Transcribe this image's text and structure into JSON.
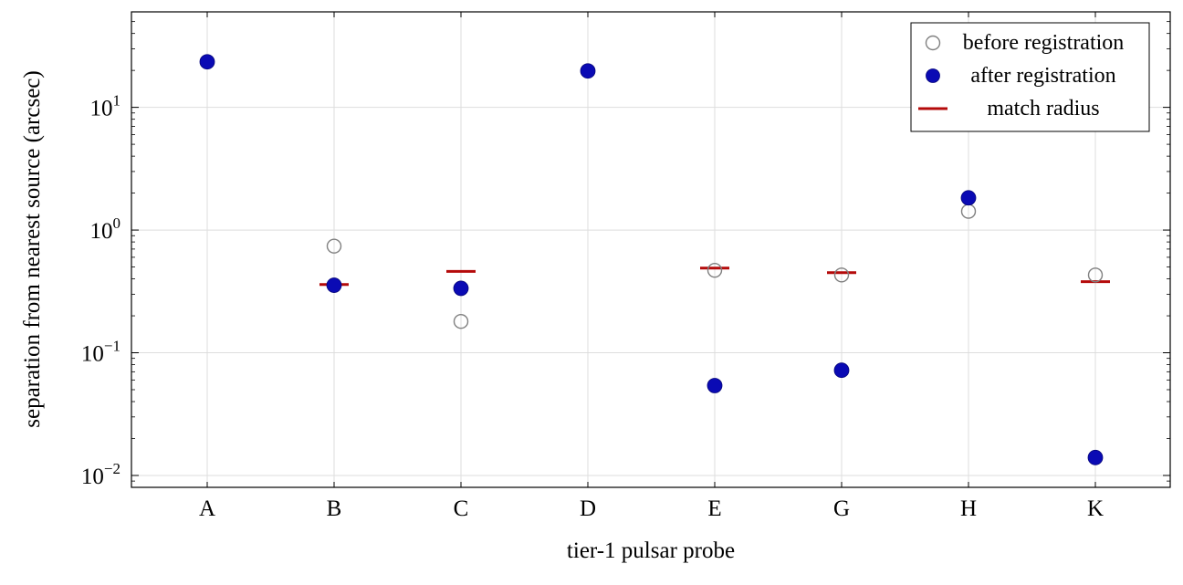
{
  "chart_data": {
    "type": "scatter",
    "xlabel": "tier-1 pulsar probe",
    "ylabel": "separation from nearest source (arcsec)",
    "categories": [
      "A",
      "B",
      "C",
      "D",
      "E",
      "G",
      "H",
      "K"
    ],
    "y_scale": "log",
    "ylim": [
      0.008,
      60
    ],
    "y_ticks": [
      {
        "base": "10",
        "exp": "−2",
        "value": 0.01
      },
      {
        "base": "10",
        "exp": "−1",
        "value": 0.1
      },
      {
        "base": "10",
        "exp": "0",
        "value": 1
      },
      {
        "base": "10",
        "exp": "1",
        "value": 10
      }
    ],
    "grid": true,
    "legend_position": "top-right",
    "series": [
      {
        "name": "before registration",
        "marker": "open-circle",
        "color": "#808080",
        "values": [
          null,
          0.74,
          0.18,
          null,
          0.47,
          0.43,
          1.42,
          0.43
        ]
      },
      {
        "name": "after registration",
        "marker": "filled-circle",
        "color": "#0a0ab4",
        "values": [
          23.5,
          0.355,
          0.335,
          19.8,
          0.054,
          0.072,
          1.83,
          0.014
        ]
      },
      {
        "name": "match radius",
        "marker": "dash",
        "color": "#b40a0a",
        "values": [
          null,
          0.36,
          0.46,
          null,
          0.49,
          0.45,
          null,
          0.38
        ]
      }
    ]
  }
}
